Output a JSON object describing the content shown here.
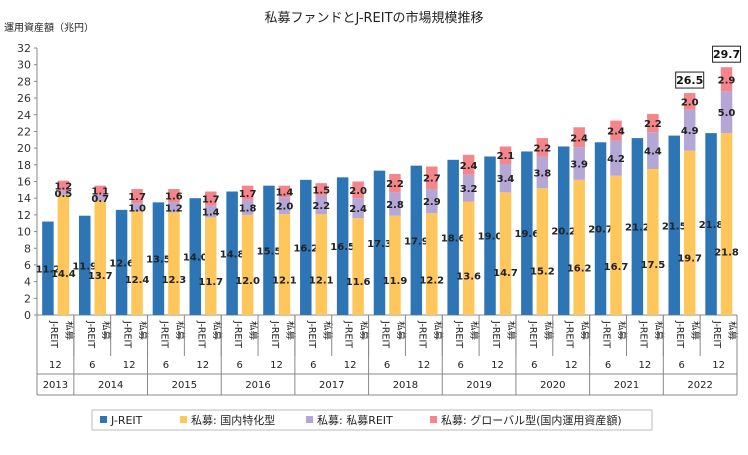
{
  "chart_data": {
    "type": "bar",
    "subtype": "stacked",
    "title": "私募ファンドとJ-REITの市場規模推移",
    "ylabel": "運用資産額（兆円）",
    "ylim": [
      0,
      32
    ],
    "yticks": [
      0,
      2,
      4,
      6,
      8,
      10,
      12,
      14,
      16,
      18,
      20,
      22,
      24,
      26,
      28,
      30,
      32
    ],
    "grid": false,
    "legend_position": "bottom",
    "categories": [
      {
        "year": "2013",
        "month": "12"
      },
      {
        "year": "2014",
        "month": "6"
      },
      {
        "year": "2014",
        "month": "12"
      },
      {
        "year": "2015",
        "month": "6"
      },
      {
        "year": "2015",
        "month": "12"
      },
      {
        "year": "2016",
        "month": "6"
      },
      {
        "year": "2016",
        "month": "12"
      },
      {
        "year": "2017",
        "month": "6"
      },
      {
        "year": "2017",
        "month": "12"
      },
      {
        "year": "2018",
        "month": "6"
      },
      {
        "year": "2018",
        "month": "12"
      },
      {
        "year": "2019",
        "month": "6"
      },
      {
        "year": "2019",
        "month": "12"
      },
      {
        "year": "2020",
        "month": "6"
      },
      {
        "year": "2020",
        "month": "12"
      },
      {
        "year": "2021",
        "month": "6"
      },
      {
        "year": "2021",
        "month": "12"
      },
      {
        "year": "2022",
        "month": "6"
      },
      {
        "year": "2022",
        "month": "12"
      }
    ],
    "bar_labels": [
      "J-REIT",
      "私募"
    ],
    "jreit": {
      "name": "J-REIT",
      "color": "#2e75b6",
      "values": [
        11.2,
        11.9,
        12.6,
        13.5,
        14.0,
        14.8,
        15.5,
        16.2,
        16.5,
        17.3,
        17.9,
        18.6,
        19.0,
        19.6,
        20.2,
        20.7,
        21.2,
        21.5,
        21.8
      ]
    },
    "private_series": [
      {
        "name": "私募: 国内特化型",
        "color": "#ffc65c",
        "values": [
          14.4,
          13.7,
          12.4,
          12.3,
          11.7,
          12.0,
          12.1,
          12.1,
          11.6,
          11.9,
          12.2,
          13.6,
          14.7,
          15.2,
          16.2,
          16.7,
          17.5,
          19.7,
          21.8
        ]
      },
      {
        "name": "私募: 私募REIT",
        "color": "#b4a7d6",
        "values": [
          0.5,
          0.7,
          1.0,
          1.2,
          1.4,
          1.8,
          2.0,
          2.2,
          2.4,
          2.8,
          2.9,
          3.2,
          3.4,
          3.8,
          3.9,
          4.2,
          4.4,
          4.9,
          5.0
        ]
      },
      {
        "name": "私募: グローバル型(国内運用資産額)",
        "color": "#f4868b",
        "values": [
          1.2,
          1.1,
          1.7,
          1.6,
          1.7,
          1.7,
          1.4,
          1.5,
          2.0,
          2.2,
          2.7,
          2.4,
          2.1,
          2.2,
          2.4,
          2.4,
          2.2,
          2.0,
          2.9
        ]
      }
    ],
    "totals_boxed": [
      {
        "category_index": 17,
        "label": "26.5"
      },
      {
        "category_index": 18,
        "label": "29.7"
      }
    ]
  }
}
